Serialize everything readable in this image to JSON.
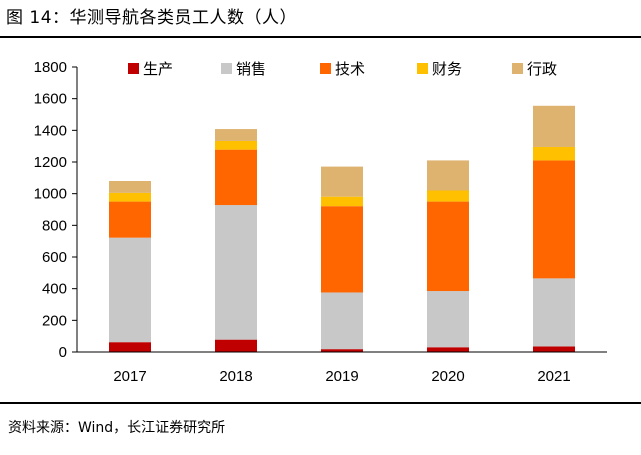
{
  "figure": {
    "title": "图 14：华测导航各类员工人数（人）",
    "source": "资料来源：Wind，长江证券研究所"
  },
  "chart_data": {
    "type": "bar",
    "stacked": true,
    "title": "华测导航各类员工人数（人）",
    "xlabel": "",
    "ylabel": "",
    "categories": [
      "2017",
      "2018",
      "2019",
      "2020",
      "2021"
    ],
    "series": [
      {
        "name": "生产",
        "color": "#c00000",
        "values": [
          62,
          78,
          18,
          30,
          35
        ]
      },
      {
        "name": "销售",
        "color": "#c8c8c8",
        "values": [
          660,
          850,
          358,
          355,
          430
        ]
      },
      {
        "name": "技术",
        "color": "#ff6600",
        "values": [
          228,
          350,
          545,
          565,
          745
        ]
      },
      {
        "name": "财务",
        "color": "#ffc000",
        "values": [
          55,
          55,
          60,
          70,
          85
        ]
      },
      {
        "name": "行政",
        "color": "#deb26f",
        "values": [
          75,
          75,
          190,
          190,
          260
        ]
      }
    ],
    "ylim": [
      0,
      1800
    ],
    "yticks": [
      0,
      200,
      400,
      600,
      800,
      1000,
      1200,
      1400,
      1600,
      1800
    ],
    "grid": false,
    "legend": "top"
  }
}
